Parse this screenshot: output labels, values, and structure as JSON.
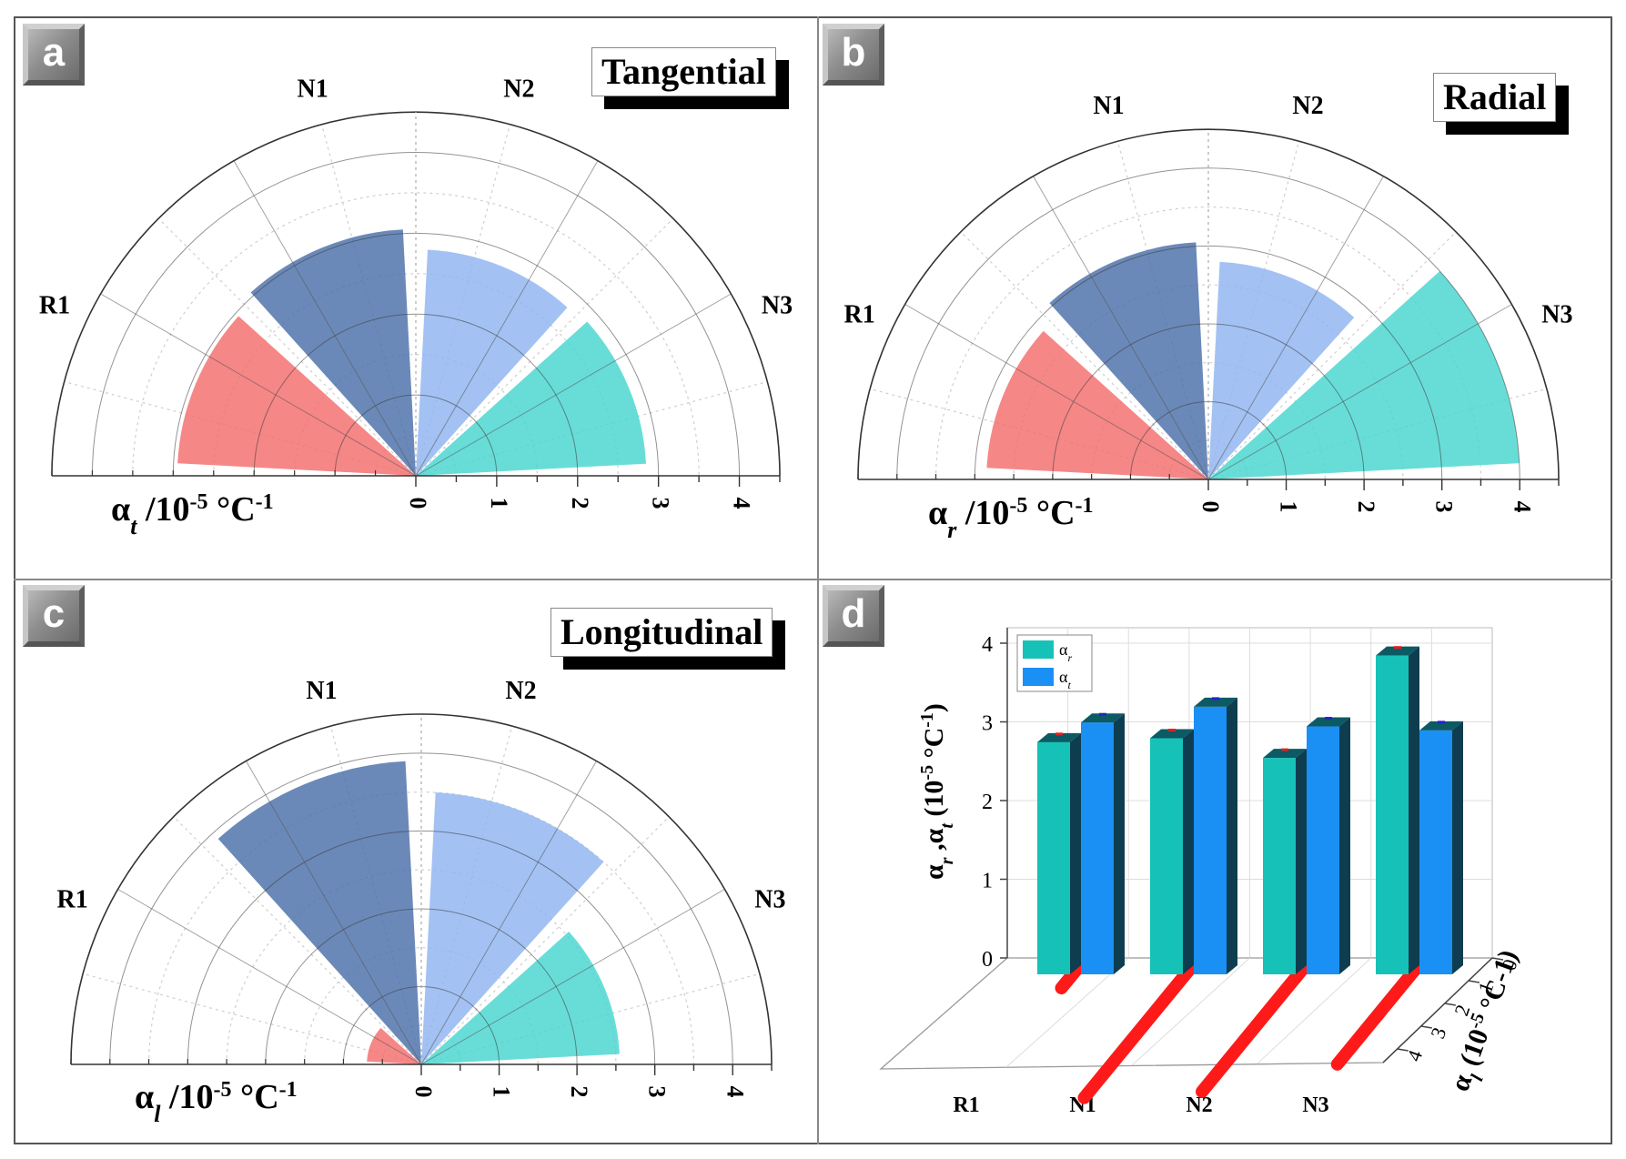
{
  "panels": {
    "a": {
      "badge": "a",
      "title": "Tangential",
      "axis_label_base": "α",
      "axis_label_sub": "t",
      "axis_label_unit": "/10",
      "axis_label_exp": "-5",
      "axis_label_tail": " °C",
      "axis_label_exp2": "-1"
    },
    "b": {
      "badge": "b",
      "title": "Radial",
      "axis_label_base": "α",
      "axis_label_sub": "r",
      "axis_label_unit": "/10",
      "axis_label_exp": "-5",
      "axis_label_tail": " °C",
      "axis_label_exp2": "-1"
    },
    "c": {
      "badge": "c",
      "title": "Longitudinal",
      "axis_label_base": "α",
      "axis_label_sub": "l",
      "axis_label_unit": "/10",
      "axis_label_exp": "-5",
      "axis_label_tail": " °C",
      "axis_label_exp2": "-1"
    },
    "d": {
      "badge": "d"
    }
  },
  "colors": {
    "R1": "#f46d6d",
    "N1": "#4a6fa8",
    "N2": "#8fb4f0",
    "N3": "#47d6cf",
    "ar_bar": "#16c2b8",
    "at_bar": "#1a90f5",
    "al_line": "#ff1a1a"
  },
  "chart_data": [
    {
      "id": "a",
      "type": "polar-bar",
      "title": "Tangential",
      "categories": [
        "R1",
        "N1",
        "N2",
        "N3"
      ],
      "values": [
        2.95,
        3.05,
        2.8,
        2.85
      ],
      "rlim": [
        0,
        4.5
      ],
      "tick_labels": [
        "0",
        "1",
        "2",
        "3",
        "4"
      ],
      "xlabel": "αt /10-5 °C-1"
    },
    {
      "id": "b",
      "type": "polar-bar",
      "title": "Radial",
      "categories": [
        "R1",
        "N1",
        "N2",
        "N3"
      ],
      "values": [
        2.85,
        3.05,
        2.8,
        4.0
      ],
      "rlim": [
        0,
        4.5
      ],
      "tick_labels": [
        "0",
        "1",
        "2",
        "3",
        "4"
      ],
      "xlabel": "αr /10-5 °C-1"
    },
    {
      "id": "c",
      "type": "polar-bar",
      "title": "Longitudinal",
      "categories": [
        "R1",
        "N1",
        "N2",
        "N3"
      ],
      "values": [
        0.7,
        3.9,
        3.5,
        2.55
      ],
      "rlim": [
        0,
        4.5
      ],
      "tick_labels": [
        "0",
        "1",
        "2",
        "3",
        "4"
      ],
      "xlabel": "αl /10-5 °C-1"
    },
    {
      "id": "d",
      "type": "bar3d",
      "categories": [
        "R1",
        "N1",
        "N2",
        "N3"
      ],
      "series": [
        {
          "name": "αr",
          "values": [
            2.95,
            3.0,
            2.75,
            4.05
          ]
        },
        {
          "name": "αt",
          "values": [
            3.2,
            3.4,
            3.15,
            3.1
          ]
        },
        {
          "name": "αl",
          "values": [
            0.6,
            4.2,
            4.0,
            3.1
          ]
        }
      ],
      "y_ticks": [
        "0",
        "1",
        "2",
        "3",
        "4"
      ],
      "depth_ticks": [
        "0",
        "1",
        "2",
        "3",
        "4"
      ],
      "ylabel": "αr ,αt (10-5 °C-1)",
      "depth_label": "αl (10-5 °C-1)",
      "ylim": [
        0,
        4.2
      ]
    }
  ]
}
